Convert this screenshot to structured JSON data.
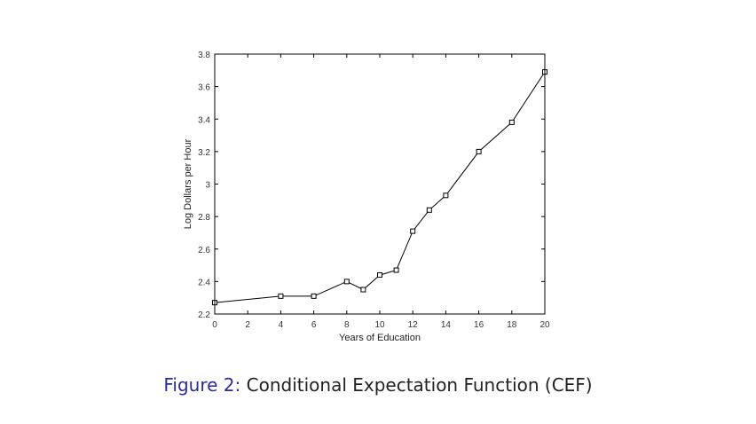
{
  "chart_data": {
    "type": "line",
    "title": "",
    "xlabel": "Years of Education",
    "ylabel": "Log Dollars per Hour",
    "xlim": [
      0,
      20
    ],
    "ylim": [
      2.2,
      3.8
    ],
    "xticks": [
      0,
      2,
      4,
      6,
      8,
      10,
      12,
      14,
      16,
      18,
      20
    ],
    "yticks": [
      2.2,
      2.4,
      2.6,
      2.8,
      3,
      3.2,
      3.4,
      3.6,
      3.8
    ],
    "ytick_labels": [
      "2.2",
      "2.4",
      "2.6",
      "2.8",
      "3",
      "3.2",
      "3.4",
      "3.6",
      "3.8"
    ],
    "grid": false,
    "marker": "square",
    "series": [
      {
        "x": [
          0,
          4,
          6,
          8,
          9,
          10,
          11,
          12,
          13,
          14,
          16,
          18,
          20
        ],
        "y": [
          2.27,
          2.31,
          2.31,
          2.4,
          2.35,
          2.44,
          2.47,
          2.71,
          2.84,
          2.93,
          3.2,
          3.38,
          3.69
        ],
        "color": "#000000"
      }
    ]
  },
  "caption": {
    "label": "Figure 2:",
    "text": "Conditional Expectation Function (CEF)"
  },
  "colors": {
    "caption_label": "#2b2b9a",
    "caption_text": "#222222"
  }
}
